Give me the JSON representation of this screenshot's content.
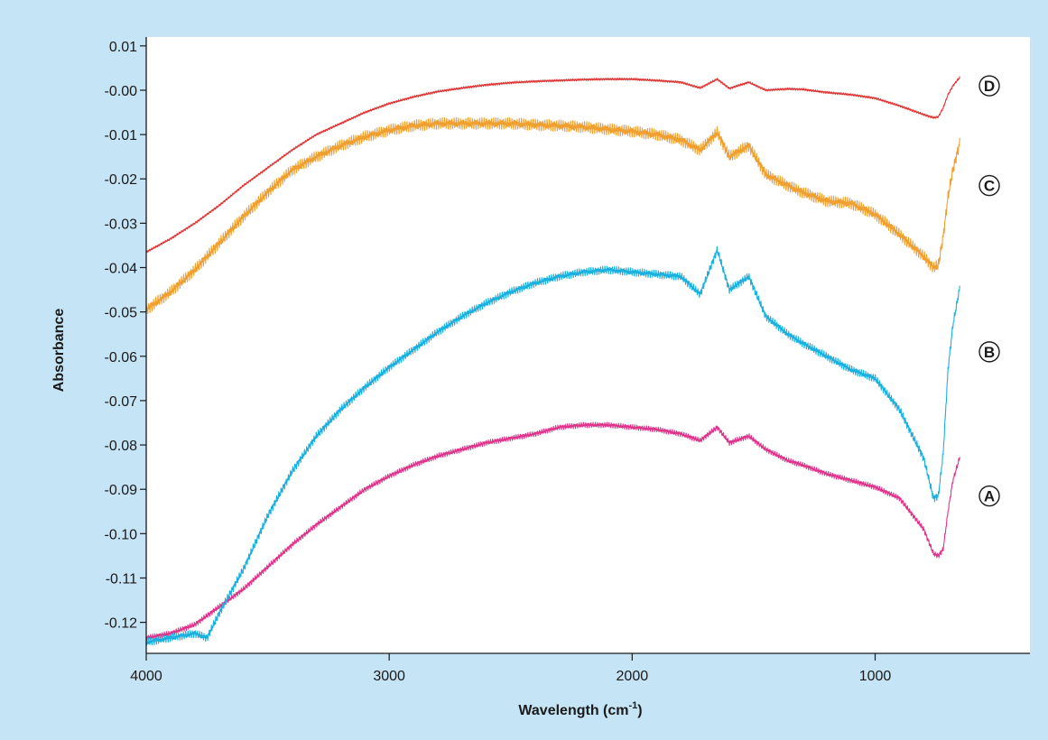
{
  "chart_data": {
    "type": "line",
    "xlabel": "Wavelength (cm",
    "xlabel_sup": "-1",
    "xlabel_close": ")",
    "ylabel": "Absorbance",
    "xlim": [
      4000,
      400
    ],
    "ylim": [
      -0.127,
      0.012
    ],
    "x_ticks": [
      4000,
      3000,
      2000,
      1000
    ],
    "x_tick_labels": [
      "4000",
      "3000",
      "2000",
      "1000"
    ],
    "y_ticks": [
      0.01,
      0.0,
      -0.01,
      -0.02,
      -0.03,
      -0.04,
      -0.05,
      -0.06,
      -0.07,
      -0.08,
      -0.09,
      -0.1,
      -0.11,
      -0.12
    ],
    "y_tick_labels": [
      "0.01",
      "-0.00",
      "-0.01",
      "-0.02",
      "-0.03",
      "-0.04",
      "-0.05",
      "-0.06",
      "-0.07",
      "-0.08",
      "-0.09",
      "-0.10",
      "-0.11",
      "-0.12"
    ],
    "series": [
      {
        "name": "A",
        "color": "#e0338a",
        "x": [
          4000,
          3900,
          3800,
          3700,
          3600,
          3500,
          3400,
          3300,
          3200,
          3100,
          3000,
          2900,
          2800,
          2700,
          2600,
          2500,
          2400,
          2300,
          2200,
          2100,
          2000,
          1900,
          1800,
          1720,
          1650,
          1600,
          1520,
          1450,
          1360,
          1300,
          1200,
          1100,
          1000,
          900,
          800,
          760,
          740,
          720,
          700,
          680,
          650
        ],
        "y": [
          -0.1235,
          -0.1225,
          -0.1205,
          -0.1165,
          -0.1125,
          -0.1075,
          -0.1025,
          -0.098,
          -0.094,
          -0.09,
          -0.087,
          -0.0845,
          -0.0825,
          -0.081,
          -0.0795,
          -0.0785,
          -0.0775,
          -0.076,
          -0.0755,
          -0.0755,
          -0.076,
          -0.0765,
          -0.0775,
          -0.079,
          -0.076,
          -0.0795,
          -0.078,
          -0.081,
          -0.0835,
          -0.0845,
          -0.0865,
          -0.088,
          -0.0895,
          -0.092,
          -0.099,
          -0.1045,
          -0.105,
          -0.1035,
          -0.095,
          -0.088,
          -0.0825
        ],
        "band": 0.0012
      },
      {
        "name": "B",
        "color": "#1ab0e0",
        "x": [
          4000,
          3900,
          3800,
          3750,
          3700,
          3600,
          3500,
          3400,
          3300,
          3200,
          3100,
          3000,
          2900,
          2800,
          2700,
          2600,
          2500,
          2400,
          2300,
          2200,
          2100,
          2000,
          1900,
          1800,
          1720,
          1650,
          1600,
          1520,
          1450,
          1360,
          1300,
          1200,
          1100,
          1000,
          900,
          800,
          760,
          740,
          720,
          700,
          680,
          650
        ],
        "y": [
          -0.1245,
          -0.1235,
          -0.1225,
          -0.1235,
          -0.118,
          -0.108,
          -0.096,
          -0.086,
          -0.078,
          -0.072,
          -0.067,
          -0.0625,
          -0.0585,
          -0.0545,
          -0.051,
          -0.048,
          -0.0455,
          -0.0435,
          -0.042,
          -0.041,
          -0.0405,
          -0.041,
          -0.0415,
          -0.042,
          -0.046,
          -0.036,
          -0.045,
          -0.042,
          -0.051,
          -0.055,
          -0.057,
          -0.06,
          -0.063,
          -0.065,
          -0.072,
          -0.083,
          -0.092,
          -0.0915,
          -0.082,
          -0.063,
          -0.053,
          -0.044
        ],
        "band": 0.0018
      },
      {
        "name": "C",
        "color": "#f0a030",
        "x": [
          4000,
          3900,
          3800,
          3700,
          3600,
          3500,
          3400,
          3300,
          3200,
          3100,
          3000,
          2900,
          2800,
          2700,
          2600,
          2500,
          2400,
          2300,
          2200,
          2100,
          2000,
          1900,
          1800,
          1720,
          1650,
          1600,
          1520,
          1450,
          1360,
          1300,
          1200,
          1100,
          1000,
          900,
          800,
          760,
          740,
          720,
          700,
          680,
          650
        ],
        "y": [
          -0.0495,
          -0.0455,
          -0.0405,
          -0.0345,
          -0.0285,
          -0.023,
          -0.018,
          -0.015,
          -0.0125,
          -0.0105,
          -0.009,
          -0.008,
          -0.0075,
          -0.0075,
          -0.0075,
          -0.0075,
          -0.0078,
          -0.008,
          -0.0083,
          -0.0088,
          -0.0093,
          -0.01,
          -0.0112,
          -0.0135,
          -0.0095,
          -0.015,
          -0.0125,
          -0.019,
          -0.0215,
          -0.023,
          -0.025,
          -0.0255,
          -0.028,
          -0.0325,
          -0.0375,
          -0.04,
          -0.0395,
          -0.033,
          -0.024,
          -0.018,
          -0.0115
        ],
        "band": 0.0026
      },
      {
        "name": "D",
        "color": "#e03535",
        "x": [
          4000,
          3900,
          3800,
          3700,
          3600,
          3500,
          3400,
          3300,
          3200,
          3100,
          3000,
          2900,
          2800,
          2700,
          2600,
          2500,
          2400,
          2300,
          2200,
          2100,
          2000,
          1900,
          1800,
          1720,
          1650,
          1600,
          1520,
          1450,
          1360,
          1300,
          1200,
          1100,
          1000,
          900,
          800,
          760,
          740,
          720,
          700,
          680,
          650
        ],
        "y": [
          -0.0365,
          -0.0335,
          -0.03,
          -0.026,
          -0.0215,
          -0.0175,
          -0.0135,
          -0.01,
          -0.0075,
          -0.005,
          -0.003,
          -0.0015,
          -0.0003,
          0.0005,
          0.0012,
          0.0017,
          0.002,
          0.0022,
          0.0024,
          0.0025,
          0.0025,
          0.0022,
          0.0018,
          0.0005,
          0.0025,
          0.0004,
          0.0018,
          0.0,
          0.0003,
          0.0002,
          -0.0005,
          -0.001,
          -0.0018,
          -0.0035,
          -0.0055,
          -0.0062,
          -0.006,
          -0.004,
          -0.001,
          0.001,
          0.003
        ],
        "band": 0.0005
      }
    ],
    "markers": [
      {
        "label": "A",
        "x": 530,
        "y": -0.0915
      },
      {
        "label": "B",
        "x": 530,
        "y": -0.059
      },
      {
        "label": "C",
        "x": 530,
        "y": -0.0215
      },
      {
        "label": "D",
        "x": 530,
        "y": 0.001
      }
    ]
  }
}
